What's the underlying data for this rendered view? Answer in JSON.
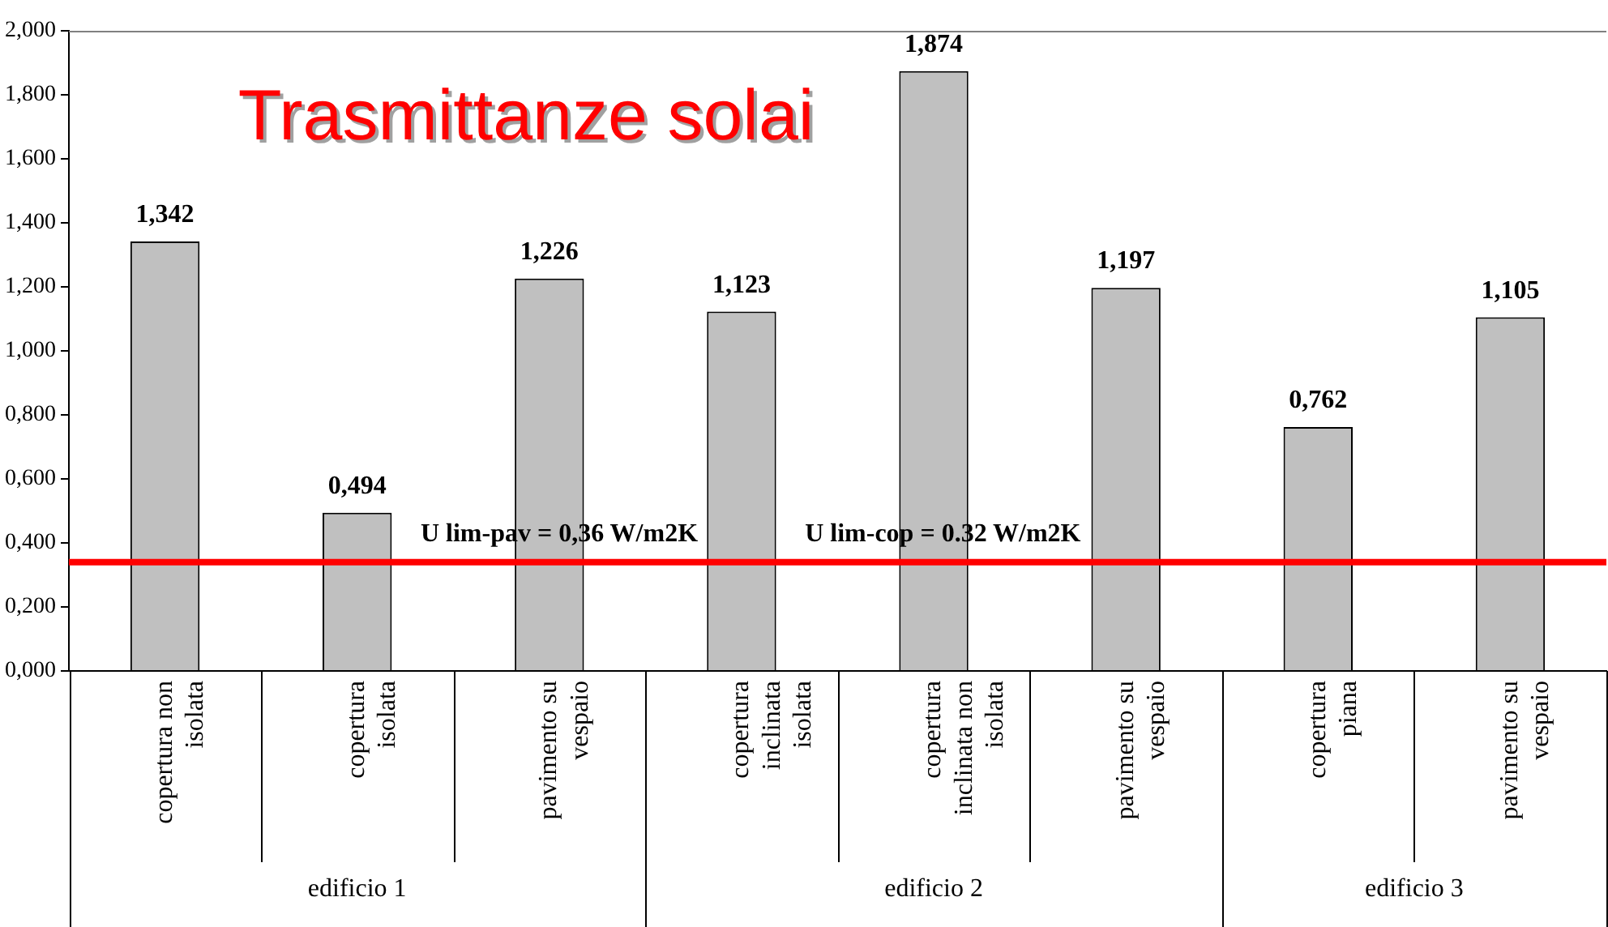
{
  "chart_data": {
    "type": "bar",
    "title": "Trasmittanze solai",
    "categories": [
      "copertura non isolata",
      "copertura isolata",
      "pavimento su vespaio",
      "copertura inclinata isolata",
      "copertura inclinata non isolata",
      "pavimento su vespaio",
      "copertura piana",
      "pavimento su vespaio"
    ],
    "values": [
      1.342,
      0.494,
      1.226,
      1.123,
      1.874,
      1.197,
      0.762,
      1.105
    ],
    "value_labels": [
      "1,342",
      "0,494",
      "1,226",
      "1,123",
      "1,874",
      "1,197",
      "0,762",
      "1,105"
    ],
    "color": "#c0c0c0",
    "ylim": [
      0,
      2
    ],
    "yticks": [
      {
        "value": 0,
        "label": "0,000"
      },
      {
        "value": 0.2,
        "label": "0,200"
      },
      {
        "value": 0.4,
        "label": "0,400"
      },
      {
        "value": 0.6,
        "label": "0,600"
      },
      {
        "value": 0.8,
        "label": "0,800"
      },
      {
        "value": 1,
        "label": "1,000"
      },
      {
        "value": 1.2,
        "label": "1,200"
      },
      {
        "value": 1.4,
        "label": "1,400"
      },
      {
        "value": 1.6,
        "label": "1,600"
      },
      {
        "value": 1.8,
        "label": "1,800"
      },
      {
        "value": 2,
        "label": "2,000"
      }
    ],
    "ref_lines": [
      {
        "axis": "y",
        "value": 0.34,
        "color": "#ff0000"
      }
    ],
    "annotations": [
      "U lim-pav = 0,36 W/m2K",
      "U lim-cop = 0.32 W/m2K",
      "edificio 1",
      "edificio 2",
      "edificio 3"
    ],
    "grid": false,
    "legend": false
  }
}
